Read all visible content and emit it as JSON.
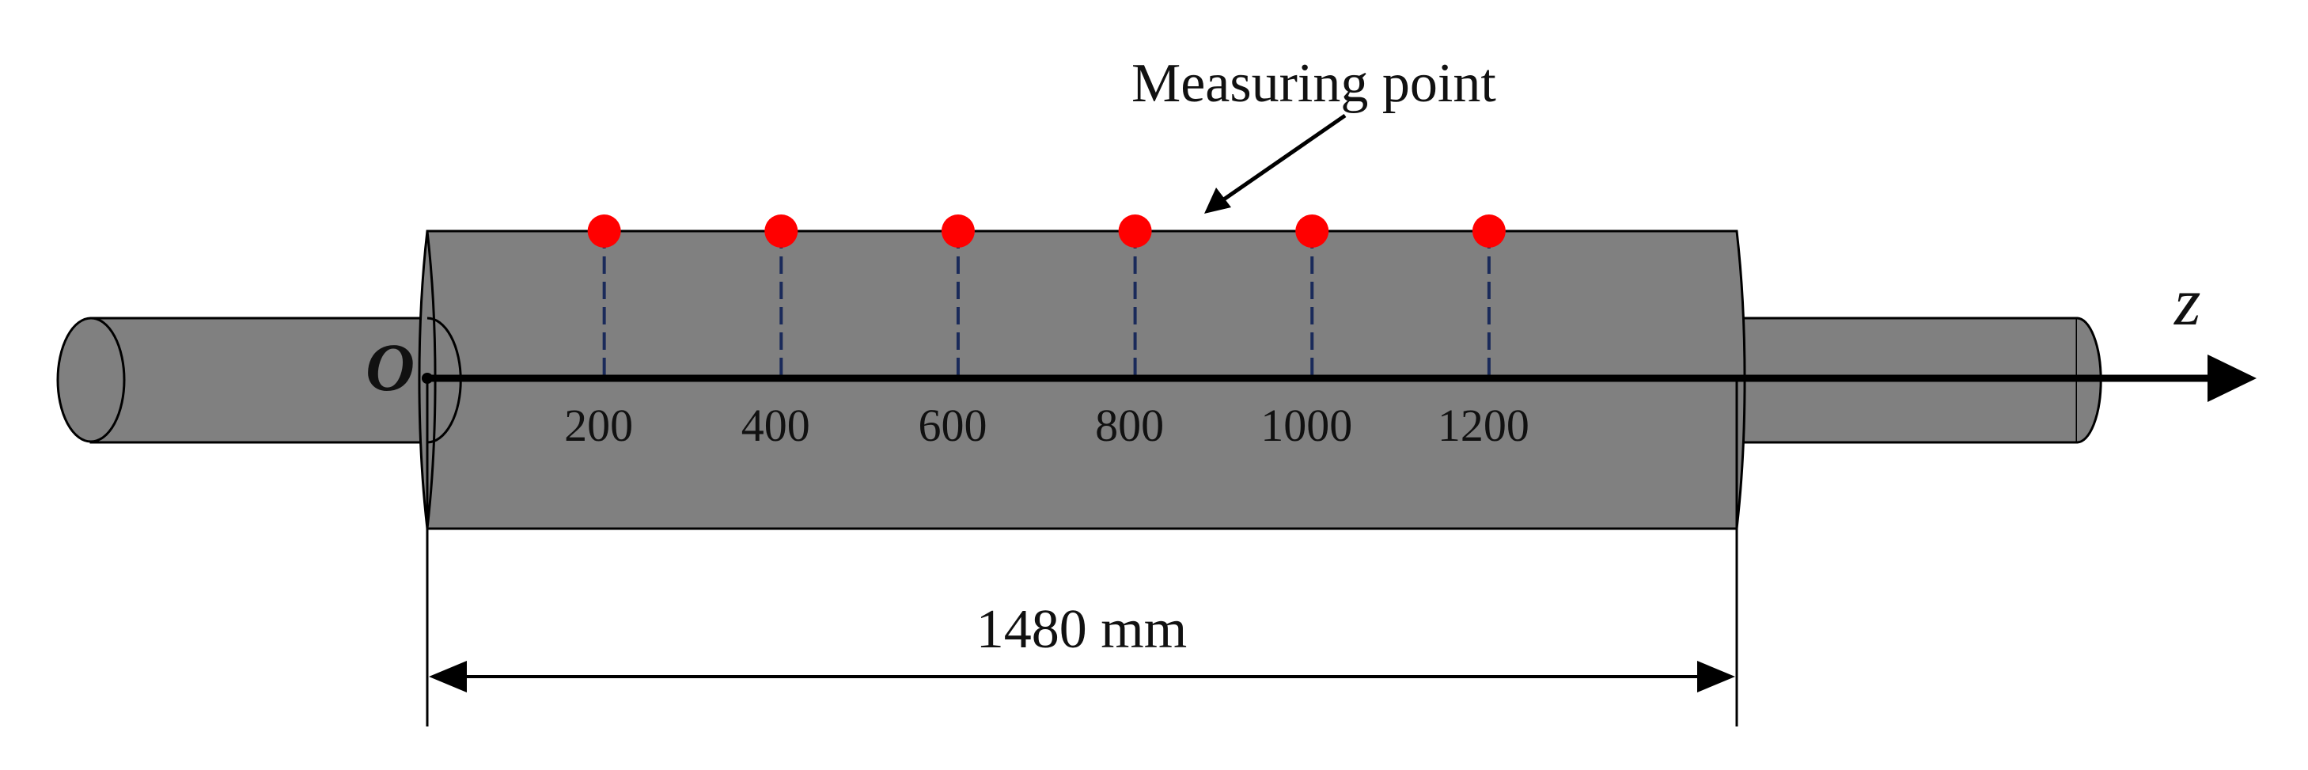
{
  "callout": {
    "label": "Measuring point"
  },
  "axis": {
    "name": "z",
    "origin": "O"
  },
  "measuring_points": [
    {
      "position": 200,
      "label": "200"
    },
    {
      "position": 400,
      "label": "400"
    },
    {
      "position": 600,
      "label": "600"
    },
    {
      "position": 800,
      "label": "800"
    },
    {
      "position": 1000,
      "label": "1000"
    },
    {
      "position": 1200,
      "label": "1200"
    }
  ],
  "dimension": {
    "length": 1480,
    "label": "1480 mm"
  },
  "colors": {
    "roll_body": "#808080",
    "outline": "#000000",
    "measuring_point": "#ff0000",
    "guide_line": "#1a2a5a",
    "axis": "#000000"
  }
}
